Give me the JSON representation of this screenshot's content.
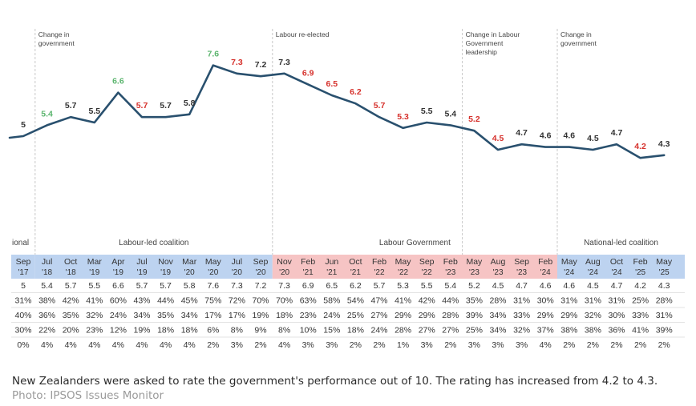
{
  "chart_data": {
    "type": "line",
    "title": "",
    "xlabel": "",
    "ylabel": "",
    "grid": false,
    "colors": {
      "line": "#29506e",
      "increase": "#5bb56e",
      "decrease": "#d6312c",
      "neutral": "#333333",
      "blue_period": "#bdd3f0",
      "red_period": "#f6c4c4",
      "divider": "#c9c9c9"
    },
    "leading_partial": {
      "date_label": "'17",
      "month": "Sep",
      "value": 5
    },
    "points": [
      {
        "month": "Sep",
        "year": "'17",
        "value": 5,
        "change": "neutral"
      },
      {
        "month": "Jul",
        "year": "'18",
        "value": 5.4,
        "change": "increase"
      },
      {
        "month": "Oct",
        "year": "'18",
        "value": 5.7,
        "change": "neutral"
      },
      {
        "month": "Mar",
        "year": "'19",
        "value": 5.5,
        "change": "neutral"
      },
      {
        "month": "Apr",
        "year": "'19",
        "value": 6.6,
        "change": "increase"
      },
      {
        "month": "Jul",
        "year": "'19",
        "value": 5.7,
        "change": "decrease"
      },
      {
        "month": "Nov",
        "year": "'19",
        "value": 5.7,
        "change": "neutral"
      },
      {
        "month": "Mar",
        "year": "'20",
        "value": 5.8,
        "change": "neutral"
      },
      {
        "month": "May",
        "year": "'20",
        "value": 7.6,
        "change": "increase"
      },
      {
        "month": "Jul",
        "year": "'20",
        "value": 7.3,
        "change": "decrease"
      },
      {
        "month": "Sep",
        "year": "'20",
        "value": 7.2,
        "change": "neutral"
      },
      {
        "month": "Nov",
        "year": "'20",
        "value": 7.3,
        "change": "neutral"
      },
      {
        "month": "Feb",
        "year": "'21",
        "value": 6.9,
        "change": "decrease"
      },
      {
        "month": "Jun",
        "year": "'21",
        "value": 6.5,
        "change": "decrease"
      },
      {
        "month": "Oct",
        "year": "'21",
        "value": 6.2,
        "change": "decrease"
      },
      {
        "month": "Feb",
        "year": "'22",
        "value": 5.7,
        "change": "decrease"
      },
      {
        "month": "May",
        "year": "'22",
        "value": 5.3,
        "change": "decrease"
      },
      {
        "month": "Sep",
        "year": "'22",
        "value": 5.5,
        "change": "neutral"
      },
      {
        "month": "Feb",
        "year": "'23",
        "value": 5.4,
        "change": "neutral"
      },
      {
        "month": "May",
        "year": "'23",
        "value": 5.2,
        "change": "decrease"
      },
      {
        "month": "Aug",
        "year": "'23",
        "value": 4.5,
        "change": "decrease"
      },
      {
        "month": "Sep",
        "year": "'23",
        "value": 4.7,
        "change": "neutral"
      },
      {
        "month": "Feb",
        "year": "'24",
        "value": 4.6,
        "change": "neutral"
      },
      {
        "month": "May",
        "year": "'24",
        "value": 4.6,
        "change": "neutral"
      },
      {
        "month": "Aug",
        "year": "'24",
        "value": 4.5,
        "change": "neutral"
      },
      {
        "month": "Oct",
        "year": "'24",
        "value": 4.7,
        "change": "neutral"
      },
      {
        "month": "Feb",
        "year": "'25",
        "value": 4.2,
        "change": "decrease"
      },
      {
        "month": "May",
        "year": "'25",
        "value": 4.3,
        "change": "neutral"
      }
    ],
    "annotations": [
      {
        "after_index": 1,
        "text": [
          "Change in",
          "government"
        ]
      },
      {
        "after_index": 11,
        "text": [
          "Labour re-elected"
        ]
      },
      {
        "after_index": 19,
        "text": [
          "Change in Labour",
          "Government",
          "leadership"
        ]
      },
      {
        "after_index": 23,
        "text": [
          "Change in",
          "government"
        ]
      }
    ],
    "periods": [
      {
        "label": "ional",
        "from": 0,
        "to": 0,
        "color": "blue"
      },
      {
        "label": "Labour-led coalition",
        "from": 1,
        "to": 10,
        "color": "blue"
      },
      {
        "label": "Labour Government",
        "from": 11,
        "to": 22,
        "color": "red"
      },
      {
        "label": "National-led coalition",
        "from": 23,
        "to": 27,
        "color": "blue"
      }
    ],
    "table_rows": [
      [
        "5",
        "5.4",
        "5.7",
        "5.5",
        "6.6",
        "5.7",
        "5.7",
        "5.8",
        "7.6",
        "7.3",
        "7.2",
        "7.3",
        "6.9",
        "6.5",
        "6.2",
        "5.7",
        "5.3",
        "5.5",
        "5.4",
        "5.2",
        "4.5",
        "4.7",
        "4.6",
        "4.6",
        "4.5",
        "4.7",
        "4.2",
        "4.3"
      ],
      [
        "31%",
        "38%",
        "42%",
        "41%",
        "60%",
        "43%",
        "44%",
        "45%",
        "75%",
        "72%",
        "70%",
        "70%",
        "63%",
        "58%",
        "54%",
        "47%",
        "41%",
        "42%",
        "44%",
        "35%",
        "28%",
        "31%",
        "30%",
        "31%",
        "31%",
        "31%",
        "25%",
        "28%"
      ],
      [
        "40%",
        "36%",
        "35%",
        "32%",
        "24%",
        "34%",
        "35%",
        "34%",
        "17%",
        "17%",
        "19%",
        "18%",
        "23%",
        "24%",
        "25%",
        "27%",
        "29%",
        "29%",
        "28%",
        "39%",
        "34%",
        "33%",
        "29%",
        "29%",
        "32%",
        "30%",
        "33%",
        "31%"
      ],
      [
        "30%",
        "22%",
        "20%",
        "23%",
        "12%",
        "19%",
        "18%",
        "18%",
        "6%",
        "8%",
        "9%",
        "8%",
        "10%",
        "15%",
        "18%",
        "24%",
        "28%",
        "27%",
        "27%",
        "25%",
        "34%",
        "32%",
        "37%",
        "38%",
        "38%",
        "36%",
        "41%",
        "39%"
      ],
      [
        "0%",
        "4%",
        "4%",
        "4%",
        "4%",
        "4%",
        "4%",
        "4%",
        "2%",
        "3%",
        "2%",
        "4%",
        "3%",
        "3%",
        "2%",
        "2%",
        "1%",
        "3%",
        "2%",
        "3%",
        "3%",
        "3%",
        "4%",
        "2%",
        "2%",
        "2%",
        "2%",
        "2%"
      ]
    ]
  },
  "caption": {
    "text": "New Zealanders were asked to rate the government's performance out of 10. The rating has increased from 4.2 to 4.3.",
    "credit": "Photo: IPSOS Issues Monitor"
  }
}
